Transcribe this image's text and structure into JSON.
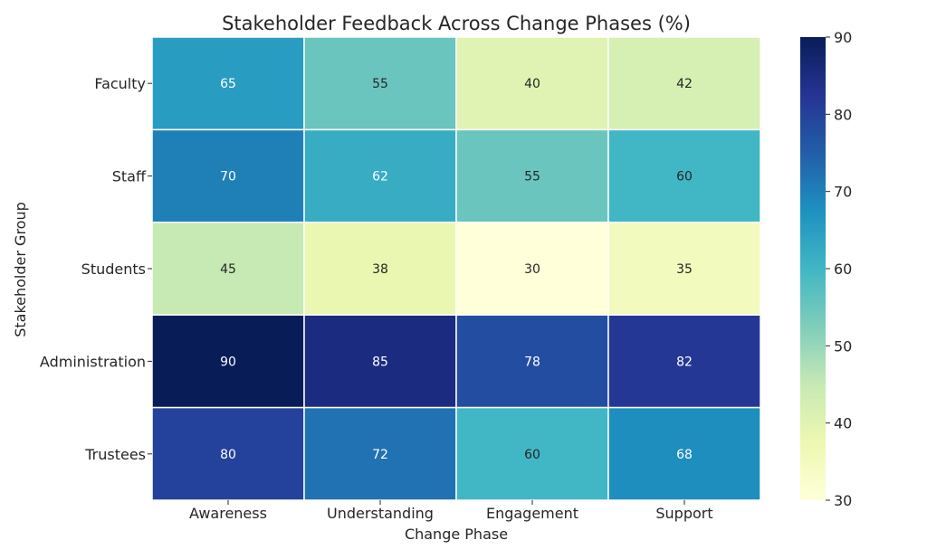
{
  "chart_data": {
    "type": "heatmap",
    "title": "Stakeholder Feedback Across Change Phases (%)",
    "xlabel": "Change Phase",
    "ylabel": "Stakeholder Group",
    "x_categories": [
      "Awareness",
      "Understanding",
      "Engagement",
      "Support"
    ],
    "y_categories": [
      "Faculty",
      "Staff",
      "Students",
      "Administration",
      "Trustees"
    ],
    "values": [
      [
        65,
        55,
        40,
        42
      ],
      [
        70,
        62,
        55,
        60
      ],
      [
        45,
        38,
        30,
        35
      ],
      [
        90,
        85,
        78,
        82
      ],
      [
        80,
        72,
        60,
        68
      ]
    ],
    "colorbar": {
      "min": 30,
      "max": 90,
      "ticks": [
        30,
        40,
        50,
        60,
        70,
        80,
        90
      ],
      "colormap": "YlGnBu"
    },
    "annotations": true,
    "grid_line_color": "#ffffff"
  }
}
